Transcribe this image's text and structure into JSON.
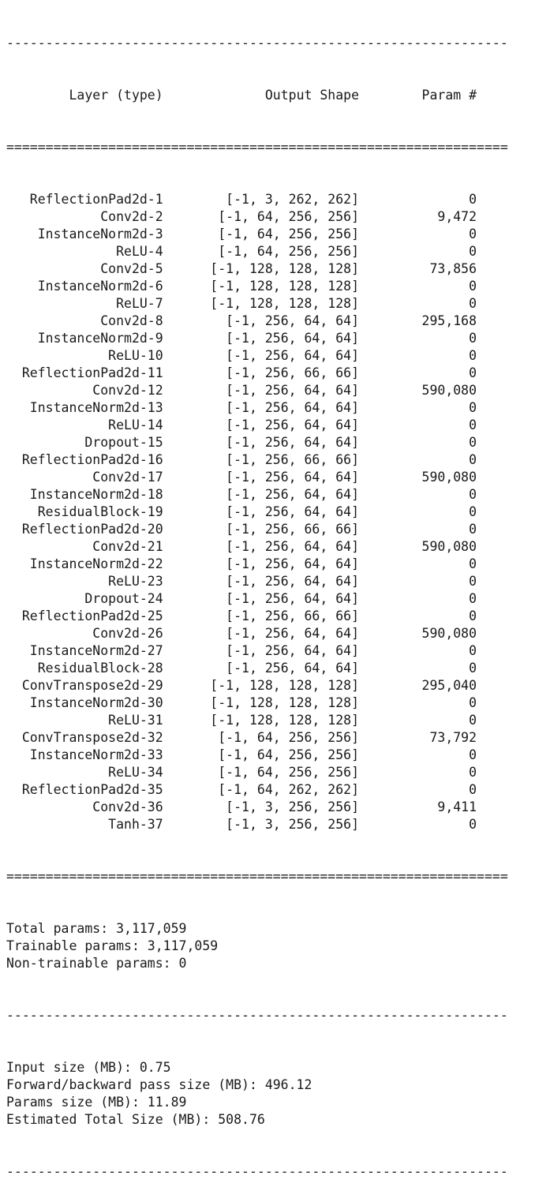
{
  "separators": {
    "dash": "----------------------------------------------------------------",
    "equal": "================================================================"
  },
  "header": {
    "layer": "Layer (type)",
    "shape": "Output Shape",
    "param": "Param #"
  },
  "layers": [
    {
      "name": "ReflectionPad2d-1",
      "shape": "[-1, 3, 262, 262]",
      "params": "0"
    },
    {
      "name": "Conv2d-2",
      "shape": "[-1, 64, 256, 256]",
      "params": "9,472"
    },
    {
      "name": "InstanceNorm2d-3",
      "shape": "[-1, 64, 256, 256]",
      "params": "0"
    },
    {
      "name": "ReLU-4",
      "shape": "[-1, 64, 256, 256]",
      "params": "0"
    },
    {
      "name": "Conv2d-5",
      "shape": "[-1, 128, 128, 128]",
      "params": "73,856"
    },
    {
      "name": "InstanceNorm2d-6",
      "shape": "[-1, 128, 128, 128]",
      "params": "0"
    },
    {
      "name": "ReLU-7",
      "shape": "[-1, 128, 128, 128]",
      "params": "0"
    },
    {
      "name": "Conv2d-8",
      "shape": "[-1, 256, 64, 64]",
      "params": "295,168"
    },
    {
      "name": "InstanceNorm2d-9",
      "shape": "[-1, 256, 64, 64]",
      "params": "0"
    },
    {
      "name": "ReLU-10",
      "shape": "[-1, 256, 64, 64]",
      "params": "0"
    },
    {
      "name": "ReflectionPad2d-11",
      "shape": "[-1, 256, 66, 66]",
      "params": "0"
    },
    {
      "name": "Conv2d-12",
      "shape": "[-1, 256, 64, 64]",
      "params": "590,080"
    },
    {
      "name": "InstanceNorm2d-13",
      "shape": "[-1, 256, 64, 64]",
      "params": "0"
    },
    {
      "name": "ReLU-14",
      "shape": "[-1, 256, 64, 64]",
      "params": "0"
    },
    {
      "name": "Dropout-15",
      "shape": "[-1, 256, 64, 64]",
      "params": "0"
    },
    {
      "name": "ReflectionPad2d-16",
      "shape": "[-1, 256, 66, 66]",
      "params": "0"
    },
    {
      "name": "Conv2d-17",
      "shape": "[-1, 256, 64, 64]",
      "params": "590,080"
    },
    {
      "name": "InstanceNorm2d-18",
      "shape": "[-1, 256, 64, 64]",
      "params": "0"
    },
    {
      "name": "ResidualBlock-19",
      "shape": "[-1, 256, 64, 64]",
      "params": "0"
    },
    {
      "name": "ReflectionPad2d-20",
      "shape": "[-1, 256, 66, 66]",
      "params": "0"
    },
    {
      "name": "Conv2d-21",
      "shape": "[-1, 256, 64, 64]",
      "params": "590,080"
    },
    {
      "name": "InstanceNorm2d-22",
      "shape": "[-1, 256, 64, 64]",
      "params": "0"
    },
    {
      "name": "ReLU-23",
      "shape": "[-1, 256, 64, 64]",
      "params": "0"
    },
    {
      "name": "Dropout-24",
      "shape": "[-1, 256, 64, 64]",
      "params": "0"
    },
    {
      "name": "ReflectionPad2d-25",
      "shape": "[-1, 256, 66, 66]",
      "params": "0"
    },
    {
      "name": "Conv2d-26",
      "shape": "[-1, 256, 64, 64]",
      "params": "590,080"
    },
    {
      "name": "InstanceNorm2d-27",
      "shape": "[-1, 256, 64, 64]",
      "params": "0"
    },
    {
      "name": "ResidualBlock-28",
      "shape": "[-1, 256, 64, 64]",
      "params": "0"
    },
    {
      "name": "ConvTranspose2d-29",
      "shape": "[-1, 128, 128, 128]",
      "params": "295,040"
    },
    {
      "name": "InstanceNorm2d-30",
      "shape": "[-1, 128, 128, 128]",
      "params": "0"
    },
    {
      "name": "ReLU-31",
      "shape": "[-1, 128, 128, 128]",
      "params": "0"
    },
    {
      "name": "ConvTranspose2d-32",
      "shape": "[-1, 64, 256, 256]",
      "params": "73,792"
    },
    {
      "name": "InstanceNorm2d-33",
      "shape": "[-1, 64, 256, 256]",
      "params": "0"
    },
    {
      "name": "ReLU-34",
      "shape": "[-1, 64, 256, 256]",
      "params": "0"
    },
    {
      "name": "ReflectionPad2d-35",
      "shape": "[-1, 64, 262, 262]",
      "params": "0"
    },
    {
      "name": "Conv2d-36",
      "shape": "[-1, 3, 256, 256]",
      "params": "9,411"
    },
    {
      "name": "Tanh-37",
      "shape": "[-1, 3, 256, 256]",
      "params": "0"
    }
  ],
  "totals": [
    "Total params: 3,117,059",
    "Trainable params: 3,117,059",
    "Non-trainable params: 0"
  ],
  "sizes": [
    "Input size (MB): 0.75",
    "Forward/backward pass size (MB): 496.12",
    "Params size (MB): 11.89",
    "Estimated Total Size (MB): 508.76"
  ]
}
